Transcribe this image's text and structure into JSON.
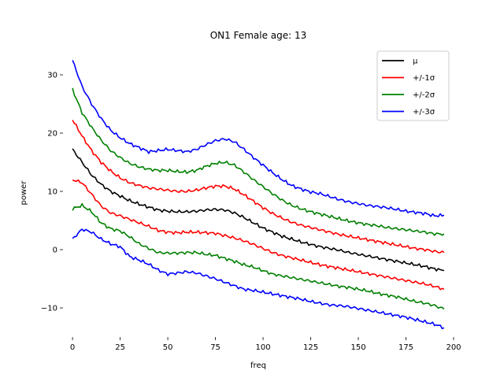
{
  "chart_data": {
    "type": "line",
    "title": "ON1 Female age: 13",
    "xlabel": "freq",
    "ylabel": "power",
    "xlim": [
      -5,
      200
    ],
    "ylim": [
      -15,
      35
    ],
    "xticks": [
      0,
      25,
      50,
      75,
      100,
      125,
      150,
      175,
      200
    ],
    "yticks": [
      -10,
      0,
      10,
      20,
      30
    ],
    "grid": false,
    "legend_position": "top-right",
    "legend": [
      {
        "label": "μ",
        "color": "#000000"
      },
      {
        "label": "+/-1σ",
        "color": "#ff0000"
      },
      {
        "label": "+/-2σ",
        "color": "#008000"
      },
      {
        "label": "+/-3σ",
        "color": "#0000ff"
      }
    ],
    "x": [
      0,
      5,
      10,
      15,
      20,
      25,
      30,
      35,
      40,
      45,
      50,
      55,
      60,
      65,
      70,
      75,
      80,
      85,
      90,
      95,
      100,
      105,
      110,
      115,
      120,
      125,
      130,
      135,
      140,
      145,
      150,
      155,
      160,
      165,
      170,
      175,
      180,
      185,
      190,
      195
    ],
    "series": [
      {
        "color": "#0000ff",
        "values": [
          32.5,
          28.0,
          25.0,
          22.5,
          20.5,
          19.2,
          18.2,
          17.5,
          16.8,
          17.0,
          17.2,
          17.0,
          16.8,
          17.2,
          18.0,
          18.7,
          19.0,
          18.5,
          17.2,
          15.8,
          14.5,
          13.2,
          12.0,
          11.0,
          10.4,
          9.9,
          9.6,
          9.1,
          8.6,
          8.2,
          7.9,
          7.6,
          7.4,
          7.2,
          6.9,
          6.6,
          6.4,
          6.2,
          5.8,
          5.9
        ]
      },
      {
        "color": "#008000",
        "values": [
          27.5,
          23.5,
          21.0,
          18.8,
          17.0,
          15.8,
          14.8,
          14.2,
          13.8,
          13.6,
          13.6,
          13.4,
          13.3,
          13.6,
          14.3,
          14.8,
          15.0,
          14.5,
          13.3,
          12.0,
          10.8,
          9.6,
          8.5,
          7.6,
          7.0,
          6.5,
          6.1,
          5.7,
          5.3,
          4.9,
          4.6,
          4.3,
          4.1,
          3.8,
          3.6,
          3.4,
          3.2,
          3.0,
          2.7,
          2.7
        ]
      },
      {
        "color": "#ff0000",
        "values": [
          22.3,
          19.5,
          17.0,
          15.0,
          13.5,
          12.3,
          11.5,
          11.0,
          10.6,
          10.4,
          10.2,
          10.0,
          10.0,
          10.2,
          10.6,
          10.9,
          10.9,
          10.4,
          9.4,
          8.3,
          7.2,
          6.2,
          5.4,
          4.7,
          4.2,
          3.8,
          3.4,
          3.0,
          2.6,
          2.3,
          2.0,
          1.7,
          1.4,
          1.1,
          0.8,
          0.5,
          0.2,
          0.0,
          -0.3,
          -0.5
        ]
      },
      {
        "color": "#000000",
        "values": [
          17.2,
          15.0,
          12.8,
          11.2,
          10.0,
          9.2,
          8.4,
          7.8,
          7.3,
          6.8,
          6.6,
          6.5,
          6.5,
          6.6,
          6.8,
          6.9,
          6.8,
          6.3,
          5.5,
          4.6,
          3.7,
          3.0,
          2.3,
          1.8,
          1.3,
          0.9,
          0.5,
          0.2,
          -0.1,
          -0.5,
          -0.8,
          -1.1,
          -1.4,
          -1.7,
          -2.0,
          -2.3,
          -2.6,
          -2.9,
          -3.3,
          -3.6
        ]
      },
      {
        "color": "#ff0000",
        "values": [
          12.0,
          11.5,
          9.5,
          7.5,
          6.3,
          5.8,
          5.2,
          4.6,
          4.0,
          3.3,
          3.0,
          2.9,
          3.0,
          3.0,
          2.9,
          2.8,
          2.4,
          2.0,
          1.5,
          0.9,
          0.2,
          -0.5,
          -1.0,
          -1.4,
          -1.8,
          -2.2,
          -2.6,
          -2.9,
          -3.2,
          -3.5,
          -3.8,
          -4.1,
          -4.4,
          -4.7,
          -5.0,
          -5.3,
          -5.6,
          -5.9,
          -6.3,
          -6.8
        ]
      },
      {
        "color": "#008000",
        "values": [
          7.0,
          7.6,
          6.5,
          4.6,
          3.6,
          3.2,
          2.2,
          1.0,
          0.2,
          -0.5,
          -0.6,
          -0.6,
          -0.5,
          -0.5,
          -0.8,
          -1.0,
          -1.5,
          -2.0,
          -2.6,
          -3.0,
          -3.6,
          -4.2,
          -4.5,
          -4.8,
          -5.1,
          -5.4,
          -5.7,
          -6.0,
          -6.3,
          -6.5,
          -6.8,
          -7.1,
          -7.5,
          -7.8,
          -8.1,
          -8.5,
          -8.9,
          -9.2,
          -9.6,
          -10.2
        ]
      },
      {
        "color": "#0000ff",
        "values": [
          1.8,
          3.5,
          3.0,
          1.8,
          1.0,
          0.5,
          -1.2,
          -1.8,
          -2.5,
          -3.5,
          -4.2,
          -4.0,
          -3.8,
          -4.0,
          -4.5,
          -5.0,
          -5.6,
          -6.2,
          -6.8,
          -7.0,
          -7.3,
          -7.6,
          -7.9,
          -8.2,
          -8.5,
          -8.9,
          -9.2,
          -9.5,
          -9.6,
          -9.8,
          -10.1,
          -10.4,
          -10.7,
          -11.0,
          -11.3,
          -11.6,
          -12.0,
          -12.4,
          -12.8,
          -13.4
        ]
      }
    ]
  }
}
